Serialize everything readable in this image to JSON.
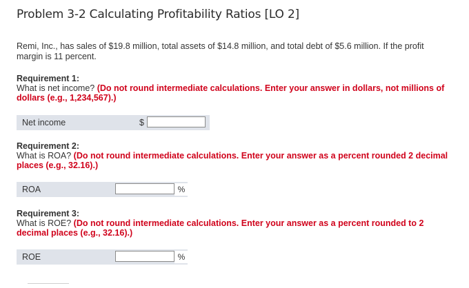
{
  "header": {
    "title": "Problem 3-2 Calculating Profitability Ratios [LO 2]"
  },
  "intro": "Remi, Inc., has sales of $19.8 million, total assets of $14.8 million, and total debt of $5.6 million. If the profit margin is 11 percent.",
  "requirements": [
    {
      "label": "Requirement 1:",
      "question": "What is net income?",
      "instruction": "(Do not round intermediate calculations. Enter your answer in dollars, not millions of dollars (e.g., 1,234,567).)",
      "field_label": "Net income",
      "prefix": "$",
      "suffix": "",
      "value": ""
    },
    {
      "label": "Requirement 2:",
      "question": "What is ROA?",
      "instruction": "(Do not round intermediate calculations. Enter your answer as a percent rounded 2 decimal places (e.g., 32.16).)",
      "field_label": "ROA",
      "prefix": "",
      "suffix": "%",
      "value": ""
    },
    {
      "label": "Requirement 3:",
      "question": "What is ROE?",
      "instruction": "(Do not round intermediate calculations. Enter your answer as a percent rounded to 2 decimal places (e.g., 32.16).)",
      "field_label": "ROE",
      "prefix": "",
      "suffix": "%",
      "value": ""
    }
  ],
  "colors": {
    "warning": "#d0021b",
    "row_bg": "#dfe3ea"
  }
}
